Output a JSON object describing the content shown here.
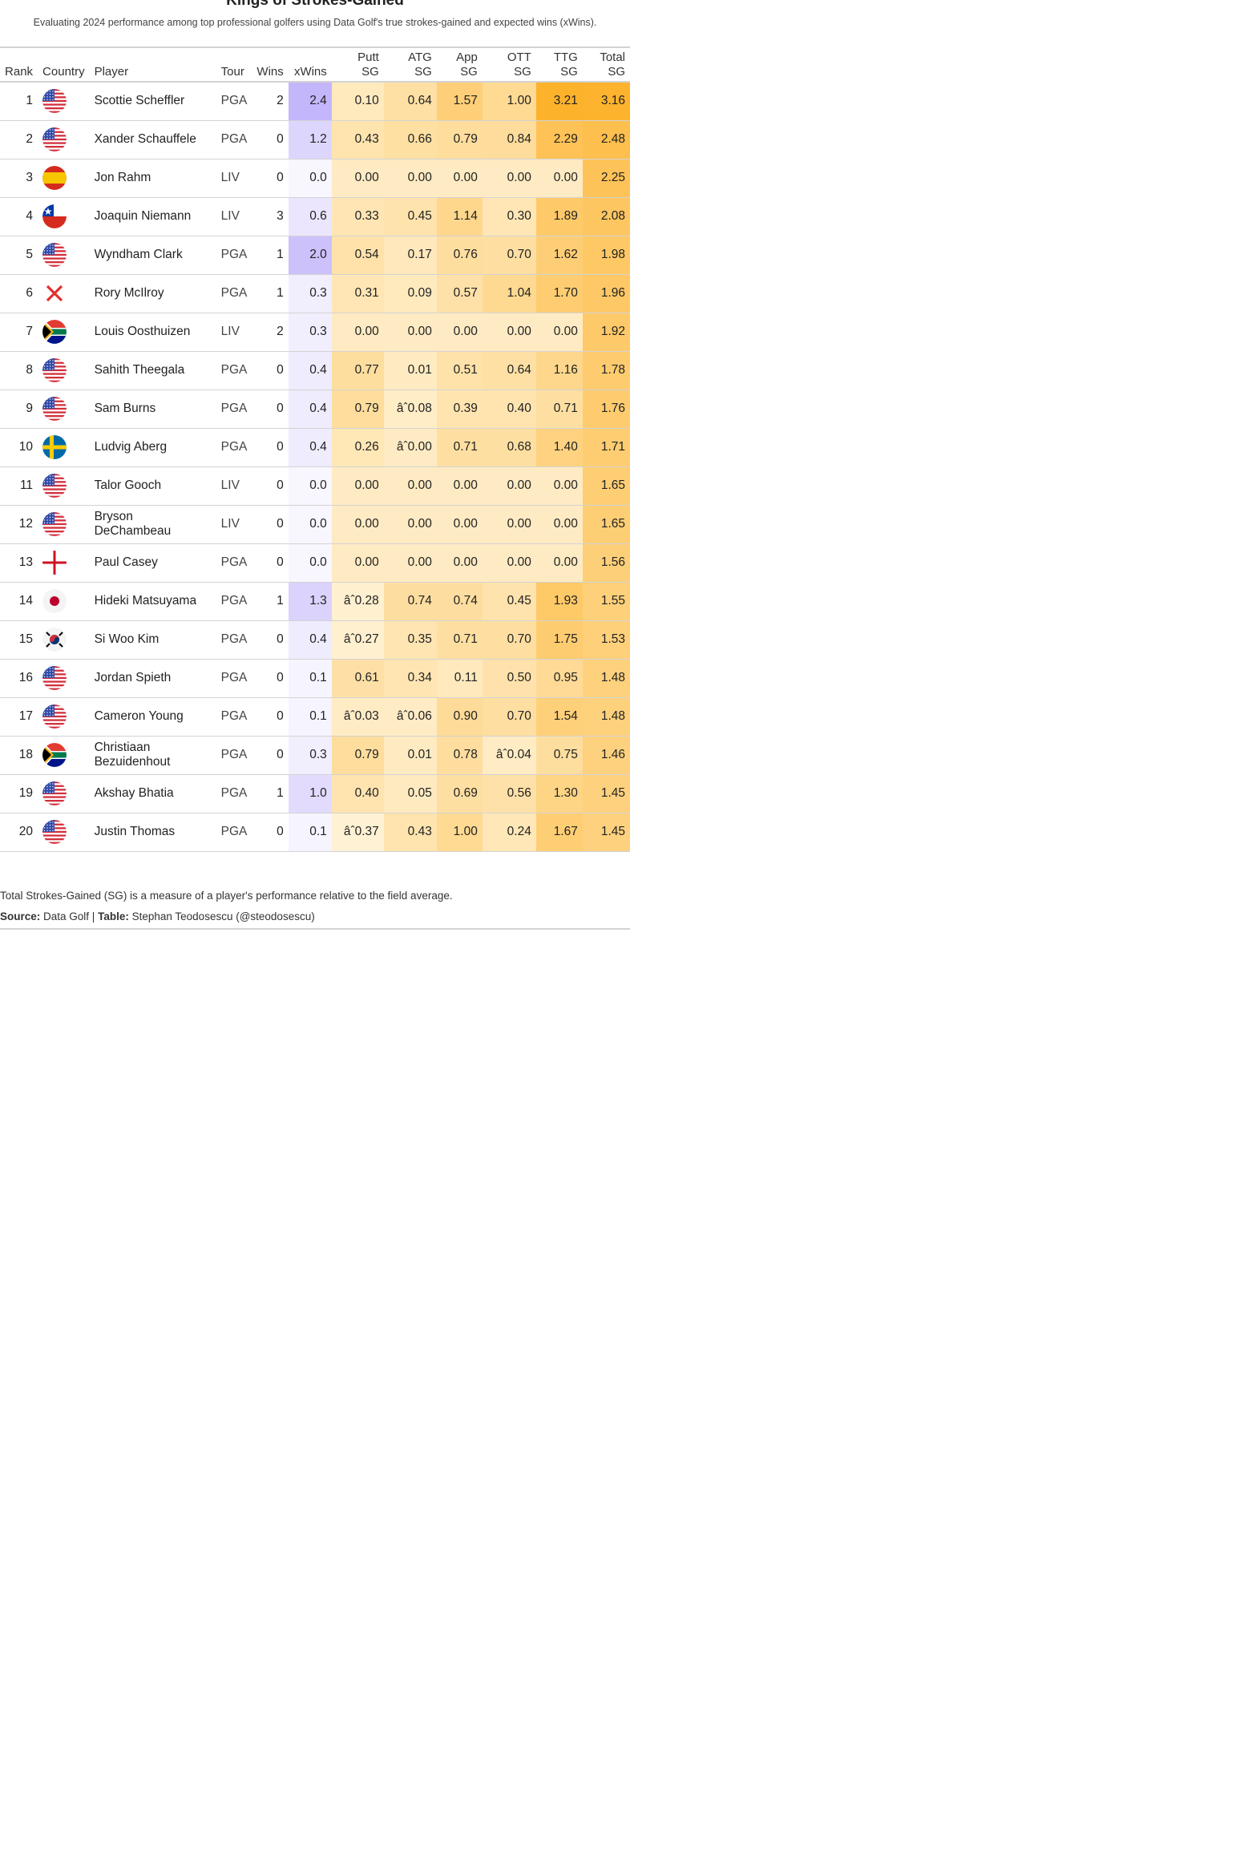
{
  "chart_data": {
    "type": "table",
    "title": "Kings of Strokes-Gained",
    "subtitle": "Evaluating 2024 performance among top professional golfers using Data Golf's true strokes-gained and expected wins (xWins).",
    "columns": [
      {
        "key": "rank",
        "label": "Rank",
        "label2": ""
      },
      {
        "key": "country",
        "label": "Country",
        "label2": ""
      },
      {
        "key": "player",
        "label": "Player",
        "label2": ""
      },
      {
        "key": "tour",
        "label": "Tour",
        "label2": ""
      },
      {
        "key": "wins",
        "label": "Wins",
        "label2": ""
      },
      {
        "key": "xwins",
        "label": "xWins",
        "label2": ""
      },
      {
        "key": "putt",
        "label": "Putt",
        "label2": "SG"
      },
      {
        "key": "atg",
        "label": "ATG",
        "label2": "SG"
      },
      {
        "key": "app",
        "label": "App",
        "label2": "SG"
      },
      {
        "key": "ott",
        "label": "OTT",
        "label2": "SG"
      },
      {
        "key": "ttg",
        "label": "TTG",
        "label2": "SG"
      },
      {
        "key": "total",
        "label": "Total",
        "label2": "SG"
      }
    ],
    "rows": [
      {
        "rank": "1",
        "flag": "us-flag-icon",
        "player": "Scottie Scheffler",
        "tour": "PGA",
        "wins": "2",
        "xwins": "2.4",
        "putt": "0.10",
        "atg": "0.64",
        "app": "1.57",
        "ott": "1.00",
        "ttg": "3.21",
        "total": "3.16"
      },
      {
        "rank": "2",
        "flag": "us-flag-icon",
        "player": "Xander Schauffele",
        "tour": "PGA",
        "wins": "0",
        "xwins": "1.2",
        "putt": "0.43",
        "atg": "0.66",
        "app": "0.79",
        "ott": "0.84",
        "ttg": "2.29",
        "total": "2.48"
      },
      {
        "rank": "3",
        "flag": "spain-flag-icon",
        "player": "Jon Rahm",
        "tour": "LIV",
        "wins": "0",
        "xwins": "0.0",
        "putt": "0.00",
        "atg": "0.00",
        "app": "0.00",
        "ott": "0.00",
        "ttg": "0.00",
        "total": "2.25"
      },
      {
        "rank": "4",
        "flag": "chile-flag-icon",
        "player": "Joaquin Niemann",
        "tour": "LIV",
        "wins": "3",
        "xwins": "0.6",
        "putt": "0.33",
        "atg": "0.45",
        "app": "1.14",
        "ott": "0.30",
        "ttg": "1.89",
        "total": "2.08"
      },
      {
        "rank": "5",
        "flag": "us-flag-icon",
        "player": "Wyndham Clark",
        "tour": "PGA",
        "wins": "1",
        "xwins": "2.0",
        "putt": "0.54",
        "atg": "0.17",
        "app": "0.76",
        "ott": "0.70",
        "ttg": "1.62",
        "total": "1.98"
      },
      {
        "rank": "6",
        "flag": "northern-ireland-cross-icon",
        "player": "Rory McIlroy",
        "tour": "PGA",
        "wins": "1",
        "xwins": "0.3",
        "putt": "0.31",
        "atg": "0.09",
        "app": "0.57",
        "ott": "1.04",
        "ttg": "1.70",
        "total": "1.96"
      },
      {
        "rank": "7",
        "flag": "south-africa-flag-icon",
        "player": "Louis Oosthuizen",
        "tour": "LIV",
        "wins": "2",
        "xwins": "0.3",
        "putt": "0.00",
        "atg": "0.00",
        "app": "0.00",
        "ott": "0.00",
        "ttg": "0.00",
        "total": "1.92"
      },
      {
        "rank": "8",
        "flag": "us-flag-icon",
        "player": "Sahith Theegala",
        "tour": "PGA",
        "wins": "0",
        "xwins": "0.4",
        "putt": "0.77",
        "atg": "0.01",
        "app": "0.51",
        "ott": "0.64",
        "ttg": "1.16",
        "total": "1.78"
      },
      {
        "rank": "9",
        "flag": "us-flag-icon",
        "player": "Sam Burns",
        "tour": "PGA",
        "wins": "0",
        "xwins": "0.4",
        "putt": "0.79",
        "atg": "âˆ0.08",
        "app": "0.39",
        "ott": "0.40",
        "ttg": "0.71",
        "total": "1.76"
      },
      {
        "rank": "10",
        "flag": "sweden-flag-icon",
        "player": "Ludvig Aberg",
        "tour": "PGA",
        "wins": "0",
        "xwins": "0.4",
        "putt": "0.26",
        "atg": "âˆ0.00",
        "app": "0.71",
        "ott": "0.68",
        "ttg": "1.40",
        "total": "1.71"
      },
      {
        "rank": "11",
        "flag": "us-flag-icon",
        "player": "Talor Gooch",
        "tour": "LIV",
        "wins": "0",
        "xwins": "0.0",
        "putt": "0.00",
        "atg": "0.00",
        "app": "0.00",
        "ott": "0.00",
        "ttg": "0.00",
        "total": "1.65"
      },
      {
        "rank": "12",
        "flag": "us-flag-icon",
        "player": "Bryson DeChambeau",
        "tour": "LIV",
        "wins": "0",
        "xwins": "0.0",
        "putt": "0.00",
        "atg": "0.00",
        "app": "0.00",
        "ott": "0.00",
        "ttg": "0.00",
        "total": "1.65"
      },
      {
        "rank": "13",
        "flag": "england-flag-icon",
        "player": "Paul Casey",
        "tour": "PGA",
        "wins": "0",
        "xwins": "0.0",
        "putt": "0.00",
        "atg": "0.00",
        "app": "0.00",
        "ott": "0.00",
        "ttg": "0.00",
        "total": "1.56"
      },
      {
        "rank": "14",
        "flag": "japan-flag-icon",
        "player": "Hideki Matsuyama",
        "tour": "PGA",
        "wins": "1",
        "xwins": "1.3",
        "putt": "âˆ0.28",
        "atg": "0.74",
        "app": "0.74",
        "ott": "0.45",
        "ttg": "1.93",
        "total": "1.55"
      },
      {
        "rank": "15",
        "flag": "south-korea-flag-icon",
        "player": "Si Woo Kim",
        "tour": "PGA",
        "wins": "0",
        "xwins": "0.4",
        "putt": "âˆ0.27",
        "atg": "0.35",
        "app": "0.71",
        "ott": "0.70",
        "ttg": "1.75",
        "total": "1.53"
      },
      {
        "rank": "16",
        "flag": "us-flag-icon",
        "player": "Jordan Spieth",
        "tour": "PGA",
        "wins": "0",
        "xwins": "0.1",
        "putt": "0.61",
        "atg": "0.34",
        "app": "0.11",
        "ott": "0.50",
        "ttg": "0.95",
        "total": "1.48"
      },
      {
        "rank": "17",
        "flag": "us-flag-icon",
        "player": "Cameron Young",
        "tour": "PGA",
        "wins": "0",
        "xwins": "0.1",
        "putt": "âˆ0.03",
        "atg": "âˆ0.06",
        "app": "0.90",
        "ott": "0.70",
        "ttg": "1.54",
        "total": "1.48"
      },
      {
        "rank": "18",
        "flag": "south-africa-flag-icon",
        "player": "Christiaan Bezuidenhout",
        "tour": "PGA",
        "wins": "0",
        "xwins": "0.3",
        "putt": "0.79",
        "atg": "0.01",
        "app": "0.78",
        "ott": "âˆ0.04",
        "ttg": "0.75",
        "total": "1.46"
      },
      {
        "rank": "19",
        "flag": "us-flag-icon",
        "player": "Akshay Bhatia",
        "tour": "PGA",
        "wins": "1",
        "xwins": "1.0",
        "putt": "0.40",
        "atg": "0.05",
        "app": "0.69",
        "ott": "0.56",
        "ttg": "1.30",
        "total": "1.45"
      },
      {
        "rank": "20",
        "flag": "us-flag-icon",
        "player": "Justin Thomas",
        "tour": "PGA",
        "wins": "0",
        "xwins": "0.1",
        "putt": "âˆ0.37",
        "atg": "0.43",
        "app": "1.00",
        "ott": "0.24",
        "ttg": "1.67",
        "total": "1.45"
      }
    ],
    "footnote": "Total Strokes-Gained (SG) is a measure of a player's performance relative to the field average.",
    "source_label": "Source:",
    "source_text": "Data Golf | ",
    "table_label": "Table:",
    "table_text": "Stephan Teodosescu (@steodosescu)",
    "colors": {
      "xwins_low": "#f3f1fe",
      "xwins_high": "#c3b6fa",
      "sg_low": "#fff2d4",
      "sg_high": "#fdb22b",
      "grid": "#d3d3d3",
      "text": "#222222"
    }
  }
}
